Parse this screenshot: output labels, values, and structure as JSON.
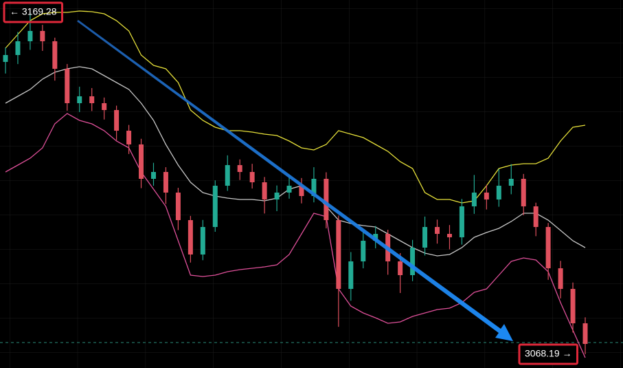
{
  "chart_data": {
    "type": "candlestick",
    "ylim": [
      3064.12,
      3172.94
    ],
    "up_color": "#22ab94",
    "down_color": "#e0505e",
    "open": [
      3154.63,
      3156.67,
      3160.74,
      3163.79,
      3160.74,
      3152.6,
      3142.43,
      3144.46,
      3142.43,
      3140.4,
      3134.29,
      3130.23,
      3120.06,
      3122.09,
      3115.99,
      3107.85,
      3097.68,
      3105.82,
      3118.02,
      3124.12,
      3122.09,
      3119.04,
      3113.95,
      3115.99,
      3118.02,
      3114.97,
      3120.06,
      3107.85,
      3087.51,
      3095.65,
      3101.75,
      3103.78,
      3095.65,
      3091.58,
      3099.72,
      3105.82,
      3103.78,
      3102.77,
      3111.92,
      3115.99,
      3113.95,
      3118.02,
      3120.06,
      3111.92,
      3105.82,
      3093.61,
      3087.51,
      3077.34
    ],
    "high": [
      3158.9,
      3163.5,
      3169.28,
      3165.6,
      3161.8,
      3154.0,
      3147.3,
      3146.9,
      3144.1,
      3141.7,
      3136.0,
      3131.9,
      3124.8,
      3123.5,
      3117.4,
      3109.1,
      3107.9,
      3119.6,
      3127.0,
      3125.8,
      3124.5,
      3120.6,
      3118.1,
      3121.4,
      3120.3,
      3123.5,
      3122.0,
      3109.2,
      3098.4,
      3104.2,
      3106.1,
      3105.0,
      3098.1,
      3102.0,
      3108.9,
      3108.0,
      3106.4,
      3114.1,
      3121.2,
      3118.3,
      3123.0,
      3124.4,
      3121.5,
      3113.0,
      3107.0,
      3095.8,
      3089.4,
      3079.1
    ],
    "low": [
      3151.2,
      3154.0,
      3158.2,
      3157.9,
      3149.1,
      3140.2,
      3139.8,
      3140.1,
      3137.6,
      3131.5,
      3127.4,
      3117.3,
      3118.0,
      3112.6,
      3104.9,
      3095.3,
      3096.0,
      3104.4,
      3116.5,
      3119.7,
      3117.2,
      3109.8,
      3110.5,
      3114.2,
      3112.8,
      3113.1,
      3105.4,
      3076.3,
      3084.0,
      3093.6,
      3099.5,
      3091.7,
      3086.3,
      3089.8,
      3097.4,
      3100.9,
      3099.2,
      3100.6,
      3109.7,
      3111.0,
      3111.8,
      3115.5,
      3109.3,
      3103.1,
      3090.2,
      3084.7,
      3074.6,
      3068.19
    ],
    "close": [
      3156.67,
      3160.74,
      3163.79,
      3160.74,
      3152.6,
      3142.43,
      3144.46,
      3142.43,
      3140.4,
      3134.29,
      3130.23,
      3120.06,
      3122.09,
      3115.99,
      3107.85,
      3097.68,
      3105.82,
      3118.02,
      3124.12,
      3122.09,
      3119.04,
      3113.95,
      3115.99,
      3118.02,
      3114.97,
      3120.06,
      3107.85,
      3087.51,
      3095.65,
      3101.75,
      3103.78,
      3095.65,
      3091.58,
      3099.72,
      3105.82,
      3103.78,
      3102.77,
      3111.92,
      3115.99,
      3113.95,
      3118.02,
      3120.06,
      3111.92,
      3105.82,
      3093.61,
      3087.51,
      3077.34,
      3071.24
    ],
    "bands": [
      {
        "color": "#e8e23a",
        "values": [
          3158.7,
          3162.77,
          3166.84,
          3168.87,
          3169.28,
          3169.28,
          3169.69,
          3169.48,
          3168.87,
          3166.84,
          3163.79,
          3156.67,
          3153.62,
          3152.6,
          3148.53,
          3140.4,
          3137.34,
          3135.31,
          3134.29,
          3134.29,
          3133.89,
          3133.28,
          3132.87,
          3131.24,
          3129.21,
          3128.6,
          3130.23,
          3134.29,
          3133.28,
          3132.26,
          3130.23,
          3128.19,
          3125.14,
          3123.11,
          3115.99,
          3113.95,
          3113.95,
          3112.94,
          3113.55,
          3118.02,
          3123.11,
          3124.12,
          3124.53,
          3124.53,
          3126.16,
          3131.24,
          3135.31,
          3135.92
        ]
      },
      {
        "color": "#c8c8c8",
        "values": [
          3142.43,
          3144.46,
          3146.5,
          3149.55,
          3151.58,
          3152.6,
          3153.21,
          3152.6,
          3150.57,
          3148.53,
          3146.5,
          3142.43,
          3137.34,
          3130.23,
          3124.12,
          3119.04,
          3115.99,
          3114.97,
          3114.36,
          3113.95,
          3113.95,
          3113.55,
          3114.36,
          3117.0,
          3118.02,
          3115.99,
          3111.92,
          3107.85,
          3106.83,
          3106.22,
          3105.82,
          3103.78,
          3101.75,
          3099.72,
          3098.09,
          3097.28,
          3097.68,
          3099.72,
          3102.77,
          3104.19,
          3105.41,
          3107.45,
          3109.89,
          3109.89,
          3107.85,
          3104.8,
          3101.75,
          3099.72
        ]
      },
      {
        "color": "#e0509a",
        "values": [
          3122.09,
          3124.12,
          3126.16,
          3129.21,
          3136.33,
          3139.38,
          3137.34,
          3136.33,
          3134.29,
          3131.24,
          3129.21,
          3122.09,
          3117.0,
          3111.92,
          3101.75,
          3091.58,
          3091.17,
          3091.58,
          3092.6,
          3093.21,
          3093.61,
          3094.02,
          3094.63,
          3097.68,
          3103.78,
          3109.89,
          3108.87,
          3087.51,
          3082.43,
          3080.39,
          3078.97,
          3077.34,
          3077.75,
          3079.38,
          3080.39,
          3081.41,
          3081.82,
          3083.44,
          3086.49,
          3087.51,
          3091.58,
          3095.65,
          3096.66,
          3096.05,
          3092.6,
          3083.44,
          3075.31,
          3067.17
        ]
      }
    ],
    "annotations": [
      {
        "label": "← 3169.28",
        "value": 3169.28
      },
      {
        "label": "3068.19 →",
        "value": 3068.19
      }
    ]
  }
}
